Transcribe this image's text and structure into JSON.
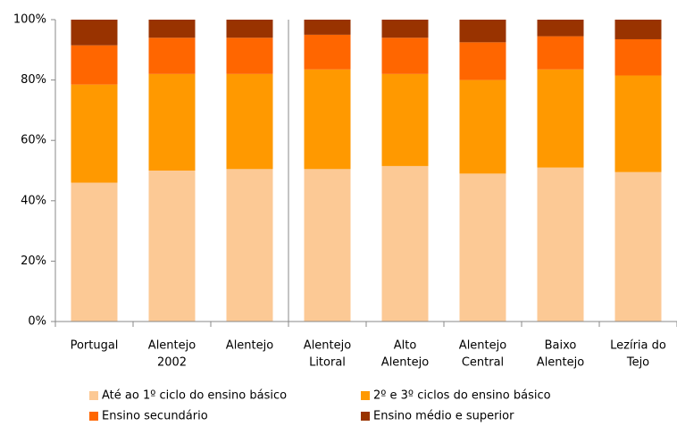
{
  "chart_data": {
    "type": "stacked_bar",
    "categories": [
      [
        "Portugal"
      ],
      [
        "Alentejo",
        "2002"
      ],
      [
        "Alentejo"
      ],
      [
        "Alentejo",
        "Litoral"
      ],
      [
        "Alto",
        "Alentejo"
      ],
      [
        "Alentejo",
        "Central"
      ],
      [
        "Baixo",
        "Alentejo"
      ],
      [
        "Lezíria do",
        "Tejo"
      ]
    ],
    "series": [
      {
        "name": "Até ao 1º ciclo do ensino básico",
        "color": "#fcc995",
        "values": [
          46,
          50,
          50.5,
          50.5,
          51.5,
          49,
          51,
          49.5
        ]
      },
      {
        "name": "2º e 3º ciclos do ensino básico",
        "color": "#ff9900",
        "values": [
          32.5,
          32,
          31.5,
          33,
          30.5,
          31,
          32.5,
          32
        ]
      },
      {
        "name": "Ensino secundário",
        "color": "#ff6600",
        "values": [
          13,
          12,
          12,
          11.5,
          12,
          12.5,
          11,
          12
        ]
      },
      {
        "name": "Ensino médio e superior",
        "color": "#993300",
        "values": [
          8.5,
          6,
          6,
          5,
          6,
          7.5,
          5.5,
          6.5
        ]
      }
    ],
    "ylim": [
      0,
      100
    ],
    "yticks": [
      {
        "value": 0,
        "label": "0%"
      },
      {
        "value": 20,
        "label": "20%"
      },
      {
        "value": 40,
        "label": "40%"
      },
      {
        "value": 60,
        "label": "60%"
      },
      {
        "value": 80,
        "label": "80%"
      },
      {
        "value": 100,
        "label": "100%"
      }
    ],
    "grid": false
  }
}
